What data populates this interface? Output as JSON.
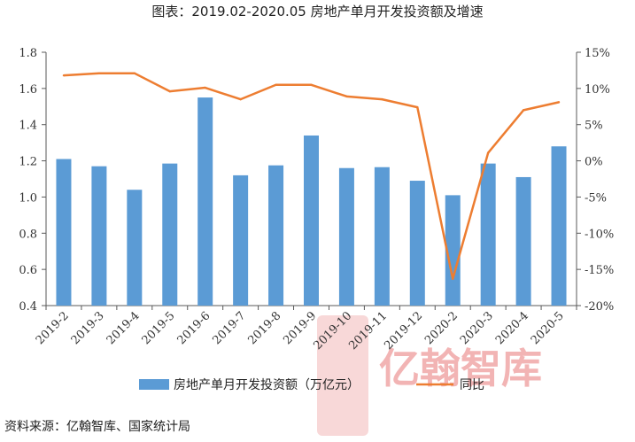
{
  "title": "图表：2019.02-2020.05 房地产单月开发投资额及增速",
  "source": "资料来源：亿翰智库、国家统计局",
  "watermark": "亿翰智库",
  "colors": {
    "bar": "#5b9bd5",
    "line": "#ed7d31",
    "axis": "#595959"
  },
  "chart_data": {
    "type": "bar+line",
    "categories": [
      "2019-2",
      "2019-3",
      "2019-4",
      "2019-5",
      "2019-6",
      "2019-7",
      "2019-8",
      "2019-9",
      "2019-10",
      "2019-11",
      "2019-12",
      "2020-2",
      "2020-3",
      "2020-4",
      "2020-5"
    ],
    "series": [
      {
        "name": "房地产单月开发投资额（万亿元）",
        "type": "bar",
        "axis": "left",
        "values": [
          1.21,
          1.17,
          1.04,
          1.185,
          1.55,
          1.12,
          1.175,
          1.34,
          1.16,
          1.165,
          1.09,
          1.01,
          1.185,
          1.11,
          1.28
        ]
      },
      {
        "name": "同比",
        "type": "line",
        "axis": "right",
        "values": [
          11.8,
          12.1,
          12.1,
          9.6,
          10.1,
          8.5,
          10.5,
          10.5,
          8.9,
          8.5,
          7.4,
          -16.3,
          1.1,
          7.0,
          8.1
        ]
      }
    ],
    "left_axis": {
      "ylim": [
        0.4,
        1.8
      ],
      "ticks": [
        "0.4",
        "0.6",
        "0.8",
        "1.0",
        "1.2",
        "1.4",
        "1.6",
        "1.8"
      ]
    },
    "right_axis": {
      "ylim": [
        -20,
        15
      ],
      "ticks": [
        "-20%",
        "-15%",
        "-10%",
        "-5%",
        "0%",
        "5%",
        "10%",
        "15%"
      ]
    },
    "grid": false,
    "legend_position": "bottom"
  }
}
